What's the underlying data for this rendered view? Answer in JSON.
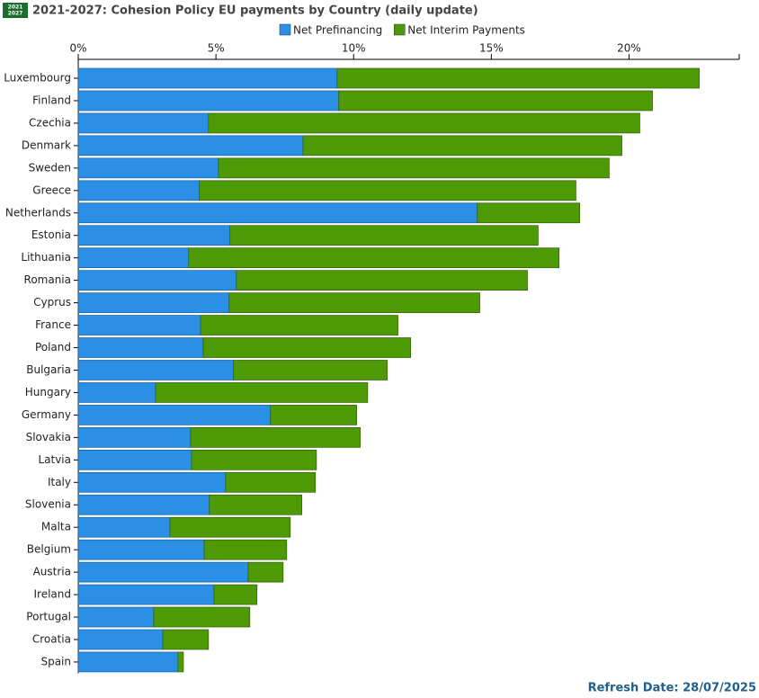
{
  "logo": [
    "2021",
    "2027"
  ],
  "refresh_date": "Refresh Date: 28/07/2025",
  "chart_data": {
    "type": "hbar-stacked",
    "title": "2021-2027: Cohesion Policy EU payments by Country (daily update)",
    "categories": [
      "Luxembourg",
      "Finland",
      "Czechia",
      "Denmark",
      "Sweden",
      "Greece",
      "Netherlands",
      "Estonia",
      "Lithuania",
      "Romania",
      "Cyprus",
      "France",
      "Poland",
      "Bulgaria",
      "Hungary",
      "Germany",
      "Slovakia",
      "Latvia",
      "Italy",
      "Slovenia",
      "Malta",
      "Belgium",
      "Austria",
      "Ireland",
      "Portugal",
      "Croatia",
      "Spain"
    ],
    "series": [
      {
        "name": "Net Prefinancing",
        "color": "#2b8fe6",
        "values": [
          9.4,
          9.46,
          4.73,
          8.16,
          5.09,
          4.4,
          14.49,
          5.51,
          4.01,
          5.74,
          5.48,
          4.44,
          4.54,
          5.64,
          2.81,
          6.98,
          4.08,
          4.11,
          5.35,
          4.76,
          3.33,
          4.57,
          6.17,
          4.93,
          2.74,
          3.07,
          3.62
        ]
      },
      {
        "name": "Net Interim Payments",
        "color": "#4e9a06",
        "values": [
          13.15,
          11.39,
          15.66,
          11.58,
          14.19,
          13.67,
          3.72,
          11.19,
          13.45,
          10.57,
          9.1,
          7.17,
          7.53,
          5.58,
          7.7,
          3.13,
          6.16,
          4.54,
          3.26,
          3.36,
          4.37,
          3.0,
          1.27,
          1.56,
          3.49,
          1.66,
          0.2
        ]
      }
    ],
    "xlim": [
      0,
      24
    ],
    "xticks": [
      {
        "value": 0,
        "label": "0%"
      },
      {
        "value": 5,
        "label": "5%"
      },
      {
        "value": 10,
        "label": "10%"
      },
      {
        "value": 15,
        "label": "15%"
      },
      {
        "value": 20,
        "label": "20%"
      }
    ]
  }
}
